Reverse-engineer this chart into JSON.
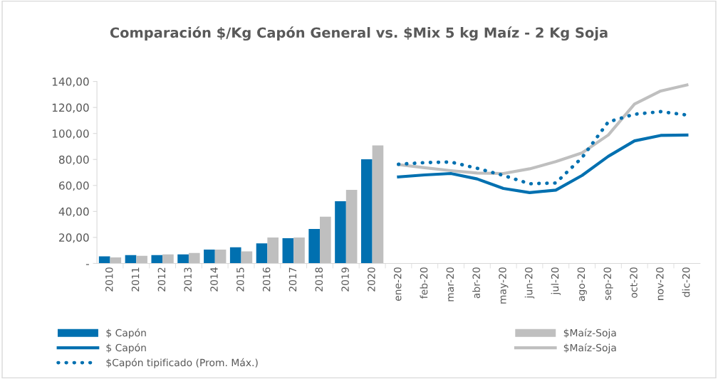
{
  "chart_data": {
    "type": "bar",
    "title": "Comparación $/Kg Capón General vs. $Mix 5 kg Maíz - 2 Kg Soja",
    "categories": [
      "2010",
      "2011",
      "2012",
      "2013",
      "2014",
      "2015",
      "2016",
      "2017",
      "2018",
      "2019",
      "2020",
      "ene-20",
      "feb-20",
      "mar-20",
      "abr-20",
      "may-20",
      "jun-20",
      "jul-20",
      "ago-20",
      "sep-20",
      "oct-20",
      "nov-20",
      "dic-20"
    ],
    "series": [
      {
        "name": "$ Capón",
        "color": "#0070b0",
        "values": [
          5.5,
          6.4,
          6.4,
          7.0,
          10.6,
          12.4,
          15.4,
          19.4,
          26.5,
          47.8,
          80.2,
          null,
          null,
          null,
          null,
          null,
          null,
          null,
          null,
          null,
          null,
          null,
          null
        ]
      },
      {
        "name": "$Maíz-Soja",
        "color": "#bfbfbf",
        "values": [
          4.6,
          5.9,
          7.0,
          8.1,
          10.6,
          9.3,
          19.9,
          19.9,
          35.9,
          56.6,
          90.8,
          null,
          null,
          null,
          null,
          null,
          null,
          null,
          null,
          null,
          null,
          null,
          null
        ]
      },
      {
        "name": "$ Capón",
        "type": "line",
        "color": "#0070b0",
        "line_style": "solid",
        "values": [
          null,
          null,
          null,
          null,
          null,
          null,
          null,
          null,
          null,
          null,
          null,
          66.6,
          68.1,
          69.2,
          65.0,
          57.7,
          54.5,
          56.4,
          67.7,
          82.4,
          94.3,
          98.5,
          98.8
        ]
      },
      {
        "name": "$Maíz-Soja",
        "type": "line",
        "color": "#bfbfbf",
        "line_style": "solid",
        "values": [
          null,
          null,
          null,
          null,
          null,
          null,
          null,
          null,
          null,
          null,
          null,
          76.0,
          73.6,
          71.4,
          69.5,
          69.2,
          72.8,
          78.3,
          85.1,
          98.8,
          122.6,
          132.7,
          137.3
        ]
      },
      {
        "name": "$Capón tipificado (Prom. Máx.)",
        "type": "line",
        "color": "#0070b0",
        "line_style": "dotted",
        "values": [
          null,
          null,
          null,
          null,
          null,
          null,
          null,
          null,
          null,
          null,
          null,
          76.3,
          77.6,
          78.0,
          73.2,
          67.7,
          61.3,
          61.9,
          81.4,
          108.9,
          114.8,
          116.8,
          114.2
        ]
      }
    ],
    "ylim": [
      0,
      140
    ],
    "yticks": [
      {
        "value": 0,
        "label": "-"
      },
      {
        "value": 20,
        "label": "20,00"
      },
      {
        "value": 40,
        "label": "40,00"
      },
      {
        "value": 60,
        "label": "60,00"
      },
      {
        "value": 80,
        "label": "80,00"
      },
      {
        "value": 100,
        "label": "100,00"
      },
      {
        "value": 120,
        "label": "120,00"
      },
      {
        "value": 140,
        "label": "140,00"
      }
    ],
    "grid": false,
    "legend": "bottom"
  }
}
